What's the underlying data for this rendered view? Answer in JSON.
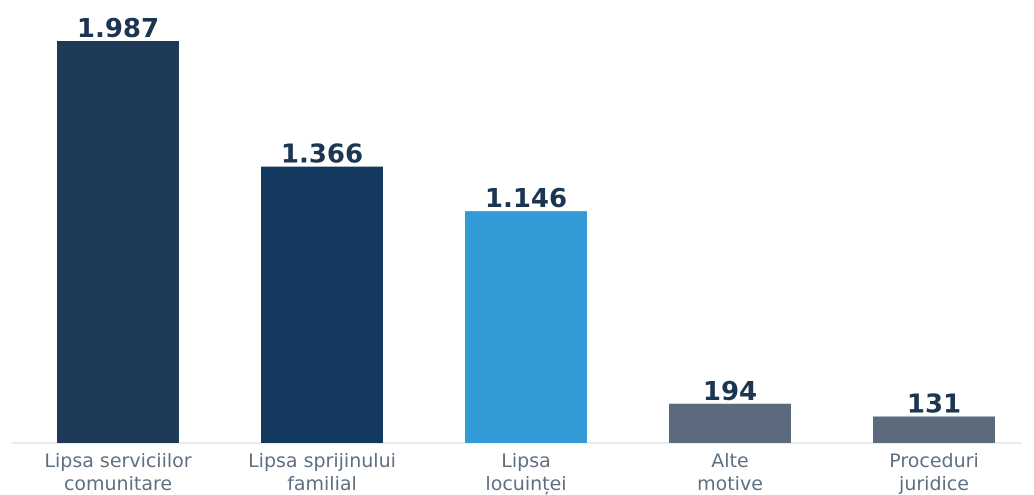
{
  "chart_data": {
    "type": "bar",
    "title": "",
    "xlabel": "",
    "ylabel": "",
    "categories": [
      [
        "Lipsa serviciilor",
        "comunitare"
      ],
      [
        "Lipsa sprijinului",
        "familial"
      ],
      [
        "Lipsa",
        "locuinței"
      ],
      [
        "Alte",
        "motive"
      ],
      [
        "Proceduri",
        "juridice"
      ]
    ],
    "values": [
      1987,
      1366,
      1146,
      194,
      131
    ],
    "value_labels": [
      "1.987",
      "1.366",
      "1.146",
      "194",
      "131"
    ],
    "colors": [
      "#1e3a56",
      "#133a5e",
      "#319bd6",
      "#5b6b7d",
      "#5b6b7d"
    ],
    "ylim": [
      0,
      1987
    ],
    "grid": false,
    "legend": "none"
  }
}
